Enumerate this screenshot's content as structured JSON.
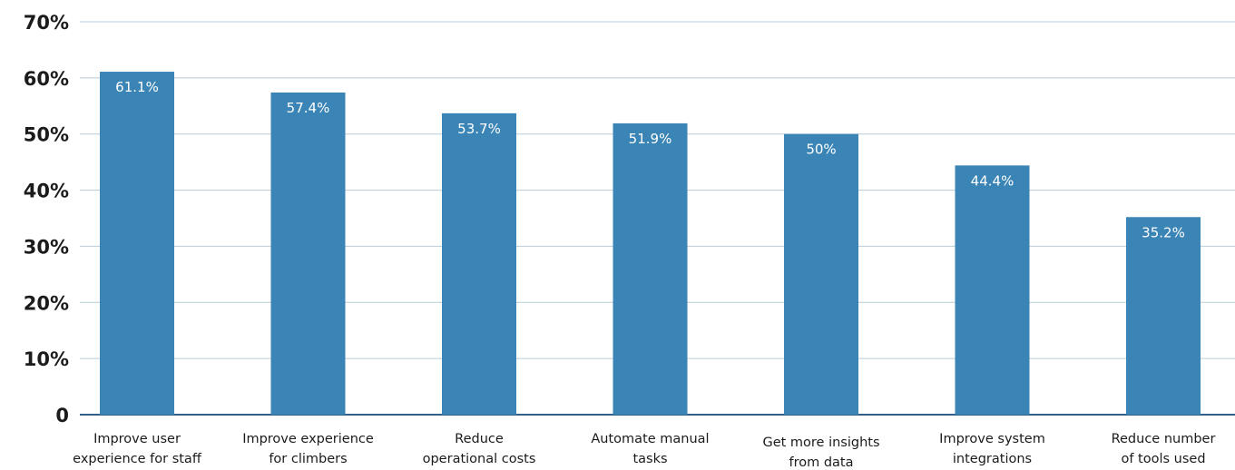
{
  "chart_data": {
    "type": "bar",
    "categories": [
      [
        "Improve user",
        "experience for staff"
      ],
      [
        "Improve experience",
        "for climbers"
      ],
      [
        "Reduce",
        "operational costs"
      ],
      [
        "Automate manual",
        "tasks"
      ],
      [
        "Get more insights",
        "from data"
      ],
      [
        "Improve system",
        "integrations"
      ],
      [
        "Reduce number",
        "of tools used"
      ]
    ],
    "values": [
      61.1,
      57.4,
      53.7,
      51.9,
      50,
      44.4,
      35.2
    ],
    "value_labels": [
      "61.1%",
      "57.4%",
      "53.7%",
      "51.9%",
      "50%",
      "44.4%",
      "35.2%"
    ],
    "ylim": [
      0,
      70
    ],
    "y_ticks": [
      0,
      10,
      20,
      30,
      40,
      50,
      60,
      70
    ],
    "y_tick_labels": [
      "0",
      "10%",
      "20%",
      "30%",
      "40%",
      "50%",
      "60%",
      "70%"
    ],
    "grid": true,
    "legend": "none",
    "colors": {
      "bar": "#3a84b6",
      "grid": "#b8ccd8",
      "baseline": "#2f5f8a",
      "bar_label": "#ffffff",
      "axis_text": "#1b1b1b"
    }
  }
}
